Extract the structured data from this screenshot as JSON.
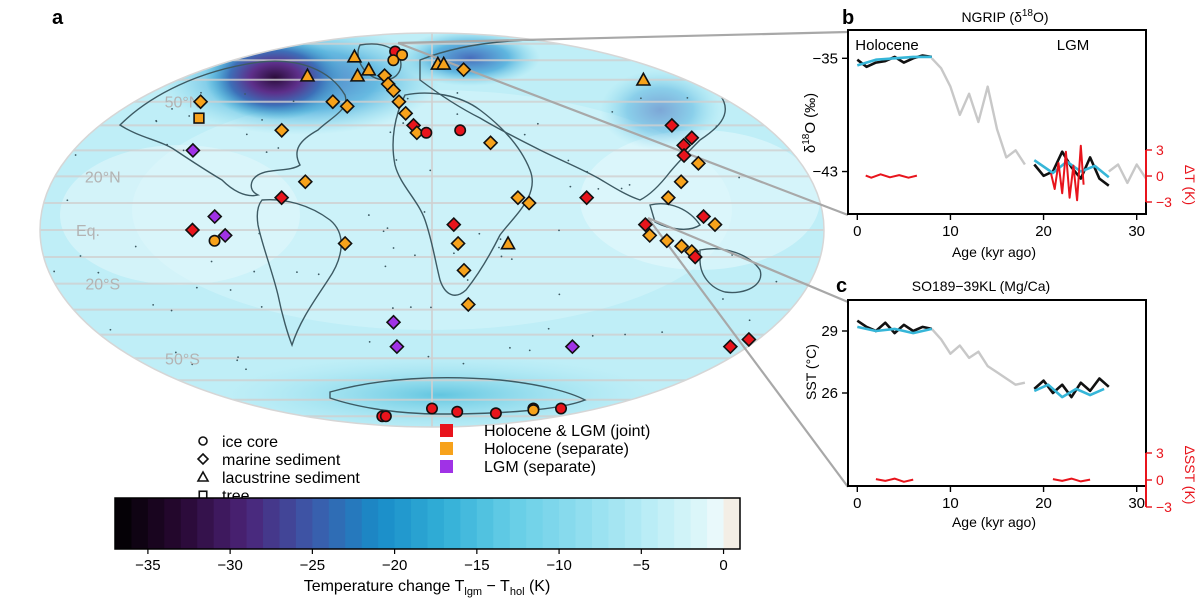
{
  "panels": {
    "a": "a",
    "b": "b",
    "c": "c"
  },
  "map": {
    "lat_labels": [
      "50°N",
      "20°N",
      "Eq.",
      "20°S",
      "50°S"
    ],
    "lat_values": [
      50,
      20,
      0,
      -20,
      -50
    ],
    "colorbar": {
      "ticks": [
        -35,
        -30,
        -25,
        -20,
        -15,
        -10,
        -5,
        0
      ],
      "range": [
        -37,
        1
      ],
      "label_main": "Temperature change T",
      "label_sub1": "lgm",
      "label_mid": " − T",
      "label_sub2": "hol",
      "label_unit": " (K)"
    },
    "legend_markers": [
      {
        "shape": "circle",
        "text": "ice core"
      },
      {
        "shape": "diamond",
        "text": "marine sediment"
      },
      {
        "shape": "triangle",
        "text": "lacustrine sediment"
      },
      {
        "shape": "square",
        "text": "tree"
      }
    ],
    "legend_colors": [
      {
        "color": "#e8141c",
        "text": "Holocene & LGM (joint)"
      },
      {
        "color": "#f7a21b",
        "text": "Holocene (separate)"
      },
      {
        "color": "#a032e6",
        "text": "LGM (separate)"
      }
    ],
    "colors": {
      "joint": "#e8141c",
      "holocene": "#f7a21b",
      "lgm": "#a032e6"
    }
  },
  "panel_b": {
    "title_pre": "NGRIP (δ",
    "title_sup": "18",
    "title_post": "O)",
    "ylabel_pre": "δ",
    "ylabel_sup": "18",
    "ylabel_post": "O (‰)",
    "xlabel": "Age (kyr ago)",
    "right_label": "ΔT (K)",
    "era_left": "Holocene",
    "era_right": "LGM",
    "xticks": [
      0,
      10,
      20,
      30
    ],
    "yticks": [
      -35,
      -43
    ],
    "right_ticks": [
      3,
      0,
      -3
    ]
  },
  "panel_c": {
    "title": "SO189−39KL (Mg/Ca)",
    "ylabel": "SST (°C)",
    "xlabel": "Age (kyr ago)",
    "right_label": "ΔSST (K)",
    "xticks": [
      0,
      10,
      20,
      30
    ],
    "yticks": [
      29,
      26
    ],
    "right_ticks": [
      3,
      0,
      -3
    ]
  },
  "chart_data": [
    {
      "type": "heatmap",
      "title": "",
      "colorbar_label": "Temperature change T_lgm − T_hol (K)",
      "colorbar_range": [
        -37,
        1
      ],
      "colorbar_ticks": [
        -35,
        -30,
        -25,
        -20,
        -15,
        -10,
        -5,
        0
      ],
      "proxy_sites": [
        {
          "lon": -40,
          "lat": 75,
          "type": "ice core",
          "group": "joint"
        },
        {
          "lon": -30,
          "lat": 73,
          "type": "ice core",
          "group": "holocene"
        },
        {
          "lon": -35,
          "lat": 70,
          "type": "ice core",
          "group": "holocene"
        },
        {
          "lon": -92,
          "lat": 62,
          "type": "lacustrine sediment",
          "group": "holocene"
        },
        {
          "lon": -75,
          "lat": 72,
          "type": "lacustrine sediment",
          "group": "holocene"
        },
        {
          "lon": -55,
          "lat": 62,
          "type": "lacustrine sediment",
          "group": "holocene"
        },
        {
          "lon": -50,
          "lat": 65,
          "type": "lacustrine sediment",
          "group": "holocene"
        },
        {
          "lon": 5,
          "lat": 68,
          "type": "lacustrine sediment",
          "group": "holocene"
        },
        {
          "lon": 10,
          "lat": 68,
          "type": "lacustrine sediment",
          "group": "holocene"
        },
        {
          "lon": 25,
          "lat": 65,
          "type": "marine sediment",
          "group": "holocene"
        },
        {
          "lon": -140,
          "lat": 50,
          "type": "marine sediment",
          "group": "holocene"
        },
        {
          "lon": -130,
          "lat": 43,
          "type": "tree",
          "group": "holocene"
        },
        {
          "lon": -35,
          "lat": 62,
          "type": "marine sediment",
          "group": "holocene"
        },
        {
          "lon": -30,
          "lat": 58,
          "type": "marine sediment",
          "group": "holocene"
        },
        {
          "lon": -25,
          "lat": 55,
          "type": "marine sediment",
          "group": "holocene"
        },
        {
          "lon": -20,
          "lat": 50,
          "type": "marine sediment",
          "group": "holocene"
        },
        {
          "lon": -15,
          "lat": 45,
          "type": "marine sediment",
          "group": "holocene"
        },
        {
          "lon": -60,
          "lat": 50,
          "type": "marine sediment",
          "group": "holocene"
        },
        {
          "lon": -50,
          "lat": 48,
          "type": "marine sediment",
          "group": "holocene"
        },
        {
          "lon": -80,
          "lat": 38,
          "type": "marine sediment",
          "group": "holocene"
        },
        {
          "lon": -10,
          "lat": 40,
          "type": "marine sediment",
          "group": "joint"
        },
        {
          "lon": -8,
          "lat": 37,
          "type": "marine sediment",
          "group": "holocene"
        },
        {
          "lon": -3,
          "lat": 37,
          "type": "ice core",
          "group": "joint"
        },
        {
          "lon": 15,
          "lat": 38,
          "type": "ice core",
          "group": "joint"
        },
        {
          "lon": 30,
          "lat": 33,
          "type": "marine sediment",
          "group": "holocene"
        },
        {
          "lon": -60,
          "lat": 18,
          "type": "marine sediment",
          "group": "holocene"
        },
        {
          "lon": -70,
          "lat": 12,
          "type": "marine sediment",
          "group": "joint"
        },
        {
          "lon": -120,
          "lat": 30,
          "type": "marine sediment",
          "group": "lgm"
        },
        {
          "lon": -100,
          "lat": 5,
          "type": "marine sediment",
          "group": "lgm"
        },
        {
          "lon": -95,
          "lat": -2,
          "type": "marine sediment",
          "group": "lgm"
        },
        {
          "lon": -100,
          "lat": -4,
          "type": "ice core",
          "group": "holocene"
        },
        {
          "lon": -110,
          "lat": 0,
          "type": "marine sediment",
          "group": "joint"
        },
        {
          "lon": -40,
          "lat": -5,
          "type": "marine sediment",
          "group": "holocene"
        },
        {
          "lon": -20,
          "lat": -35,
          "type": "marine sediment",
          "group": "lgm"
        },
        {
          "lon": -20,
          "lat": -45,
          "type": "marine sediment",
          "group": "lgm"
        },
        {
          "lon": 40,
          "lat": 12,
          "type": "marine sediment",
          "group": "holocene"
        },
        {
          "lon": 45,
          "lat": 10,
          "type": "marine sediment",
          "group": "holocene"
        },
        {
          "lon": 10,
          "lat": 2,
          "type": "marine sediment",
          "group": "joint"
        },
        {
          "lon": 12,
          "lat": -5,
          "type": "marine sediment",
          "group": "holocene"
        },
        {
          "lon": 15,
          "lat": -15,
          "type": "marine sediment",
          "group": "holocene"
        },
        {
          "lon": 18,
          "lat": -28,
          "type": "marine sediment",
          "group": "holocene"
        },
        {
          "lon": 35,
          "lat": -5,
          "type": "lacustrine sediment",
          "group": "holocene"
        },
        {
          "lon": 72,
          "lat": 12,
          "type": "marine sediment",
          "group": "joint"
        },
        {
          "lon": 80,
          "lat": -45,
          "type": "marine sediment",
          "group": "lgm"
        },
        {
          "lon": 130,
          "lat": 40,
          "type": "marine sediment",
          "group": "joint"
        },
        {
          "lon": 135,
          "lat": 35,
          "type": "marine sediment",
          "group": "joint"
        },
        {
          "lon": 128,
          "lat": 32,
          "type": "marine sediment",
          "group": "joint"
        },
        {
          "lon": 125,
          "lat": 28,
          "type": "marine sediment",
          "group": "joint"
        },
        {
          "lon": 130,
          "lat": 25,
          "type": "marine sediment",
          "group": "holocene"
        },
        {
          "lon": 118,
          "lat": 18,
          "type": "marine sediment",
          "group": "holocene"
        },
        {
          "lon": 110,
          "lat": 12,
          "type": "marine sediment",
          "group": "holocene"
        },
        {
          "lon": 125,
          "lat": 5,
          "type": "marine sediment",
          "group": "joint"
        },
        {
          "lon": 130,
          "lat": 2,
          "type": "marine sediment",
          "group": "holocene"
        },
        {
          "lon": 98,
          "lat": 2,
          "type": "marine sediment",
          "group": "joint"
        },
        {
          "lon": 100,
          "lat": -2,
          "type": "marine sediment",
          "group": "holocene"
        },
        {
          "lon": 108,
          "lat": -4,
          "type": "marine sediment",
          "group": "holocene"
        },
        {
          "lon": 115,
          "lat": -6,
          "type": "marine sediment",
          "group": "holocene"
        },
        {
          "lon": 120,
          "lat": -8,
          "type": "marine sediment",
          "group": "holocene"
        },
        {
          "lon": 122,
          "lat": -10,
          "type": "marine sediment",
          "group": "joint"
        },
        {
          "lon": 150,
          "lat": 60,
          "type": "lacustrine sediment",
          "group": "holocene"
        },
        {
          "lon": 170,
          "lat": -45,
          "type": "marine sediment",
          "group": "joint"
        },
        {
          "lon": 175,
          "lat": -42,
          "type": "marine sediment",
          "group": "joint"
        },
        {
          "lon": -70,
          "lat": -80,
          "type": "ice core",
          "group": "joint"
        },
        {
          "lon": -65,
          "lat": -80,
          "type": "ice core",
          "group": "joint"
        },
        {
          "lon": 0,
          "lat": -75,
          "type": "ice core",
          "group": "joint"
        },
        {
          "lon": 30,
          "lat": -77,
          "type": "ice core",
          "group": "joint"
        },
        {
          "lon": 80,
          "lat": -78,
          "type": "ice core",
          "group": "joint"
        },
        {
          "lon": 110,
          "lat": -75,
          "type": "ice core",
          "group": "joint"
        },
        {
          "lon": 115,
          "lat": -76,
          "type": "ice core",
          "group": "holocene"
        },
        {
          "lon": 140,
          "lat": -75,
          "type": "ice core",
          "group": "joint"
        }
      ]
    },
    {
      "type": "line",
      "title": "NGRIP (δ18O)",
      "xlabel": "Age (kyr ago)",
      "ylabel": "δ18O (‰)",
      "xlim": [
        -1,
        31
      ],
      "ylim": [
        -46,
        -33
      ],
      "right_ylabel": "ΔT (K)",
      "right_ylim": [
        -3,
        3
      ],
      "series": [
        {
          "x": [
            0,
            1,
            2,
            3,
            4,
            5,
            6,
            7,
            8
          ],
          "y": [
            -35.1,
            -35.6,
            -35.3,
            -35.2,
            -34.9,
            -35.3,
            -35.0,
            -34.8,
            -34.9
          ]
        },
        {
          "x": [
            8,
            9,
            10,
            11,
            12,
            13,
            14,
            15,
            16,
            17,
            18
          ],
          "y": [
            -35.0,
            -35.7,
            -37.0,
            -39.0,
            -37.5,
            -39.5,
            -37.0,
            -40.0,
            -42.0,
            -41.5,
            -42.5
          ]
        },
        {
          "x": [
            19,
            20,
            21,
            22,
            23,
            24,
            25,
            26,
            27
          ],
          "y": [
            -42.5,
            -43.3,
            -43.0,
            -41.6,
            -42.7,
            -43.5,
            -42.0,
            -43.5,
            -44.0
          ]
        },
        {
          "x": [
            27,
            28,
            29,
            30,
            31
          ],
          "y": [
            -43.0,
            -42.5,
            -43.8,
            -42.5,
            -43.5
          ]
        },
        {
          "x": [
            0,
            2,
            4,
            6,
            8
          ],
          "y": [
            -35.5,
            -35.1,
            -35.0,
            -34.9,
            -34.9
          ]
        },
        {
          "x": [
            19,
            21,
            22.5,
            24,
            25.5,
            27
          ],
          "y": [
            -42.2,
            -43.1,
            -42.3,
            -43.0,
            -42.6,
            -43.4
          ]
        },
        {
          "x": [
            0.9,
            1.5,
            2.5,
            3.5,
            4.5,
            5.5,
            6.4
          ],
          "y": [
            0.05,
            -0.2,
            0.2,
            -0.15,
            0.1,
            -0.2,
            0.05
          ]
        },
        {
          "x": [
            20.8,
            21.2,
            21.6,
            22.0,
            22.4,
            22.8,
            23.2,
            23.6,
            24.0,
            24.3
          ],
          "y": [
            0.3,
            -1.5,
            1.5,
            -2.0,
            2.8,
            -2.5,
            1.2,
            -2.8,
            3.5,
            -1.0
          ]
        }
      ]
    },
    {
      "type": "line",
      "title": "SO189−39KL (Mg/Ca)",
      "xlabel": "Age (kyr ago)",
      "ylabel": "SST (°C)",
      "xlim": [
        -1,
        31
      ],
      "ylim": [
        21.5,
        30.5
      ],
      "right_ylabel": "ΔSST (K)",
      "right_ylim": [
        -3,
        3
      ],
      "series": [
        {
          "x": [
            0,
            1,
            2,
            3,
            4,
            5,
            6,
            7,
            8
          ],
          "y": [
            29.5,
            29.2,
            29.0,
            29.4,
            28.9,
            29.3,
            29.0,
            29.2,
            29.1
          ]
        },
        {
          "x": [
            8,
            9,
            10,
            11,
            12,
            13,
            14,
            15,
            16,
            17,
            18
          ],
          "y": [
            29.1,
            28.6,
            27.9,
            28.3,
            27.7,
            28.0,
            27.3,
            27.0,
            26.7,
            26.4,
            26.5
          ]
        },
        {
          "x": [
            19,
            20,
            21,
            22,
            23,
            24,
            25,
            26,
            27
          ],
          "y": [
            26.2,
            26.6,
            26.0,
            26.4,
            25.8,
            26.5,
            26.1,
            26.7,
            26.3
          ]
        },
        {
          "x": [
            0,
            2,
            4,
            6,
            8
          ],
          "y": [
            29.2,
            29.0,
            29.1,
            28.9,
            29.1
          ]
        },
        {
          "x": [
            19,
            20.5,
            22,
            23.5,
            25,
            26.5
          ],
          "y": [
            26.1,
            26.4,
            25.8,
            26.2,
            25.9,
            26.2
          ]
        },
        {
          "x": [
            2,
            3,
            4,
            5,
            6
          ],
          "y": [
            0.1,
            -0.1,
            0.15,
            -0.2,
            0.05
          ]
        },
        {
          "x": [
            21,
            22,
            23,
            24,
            25
          ],
          "y": [
            0.1,
            -0.1,
            0.15,
            -0.15,
            0.05
          ]
        }
      ]
    }
  ]
}
